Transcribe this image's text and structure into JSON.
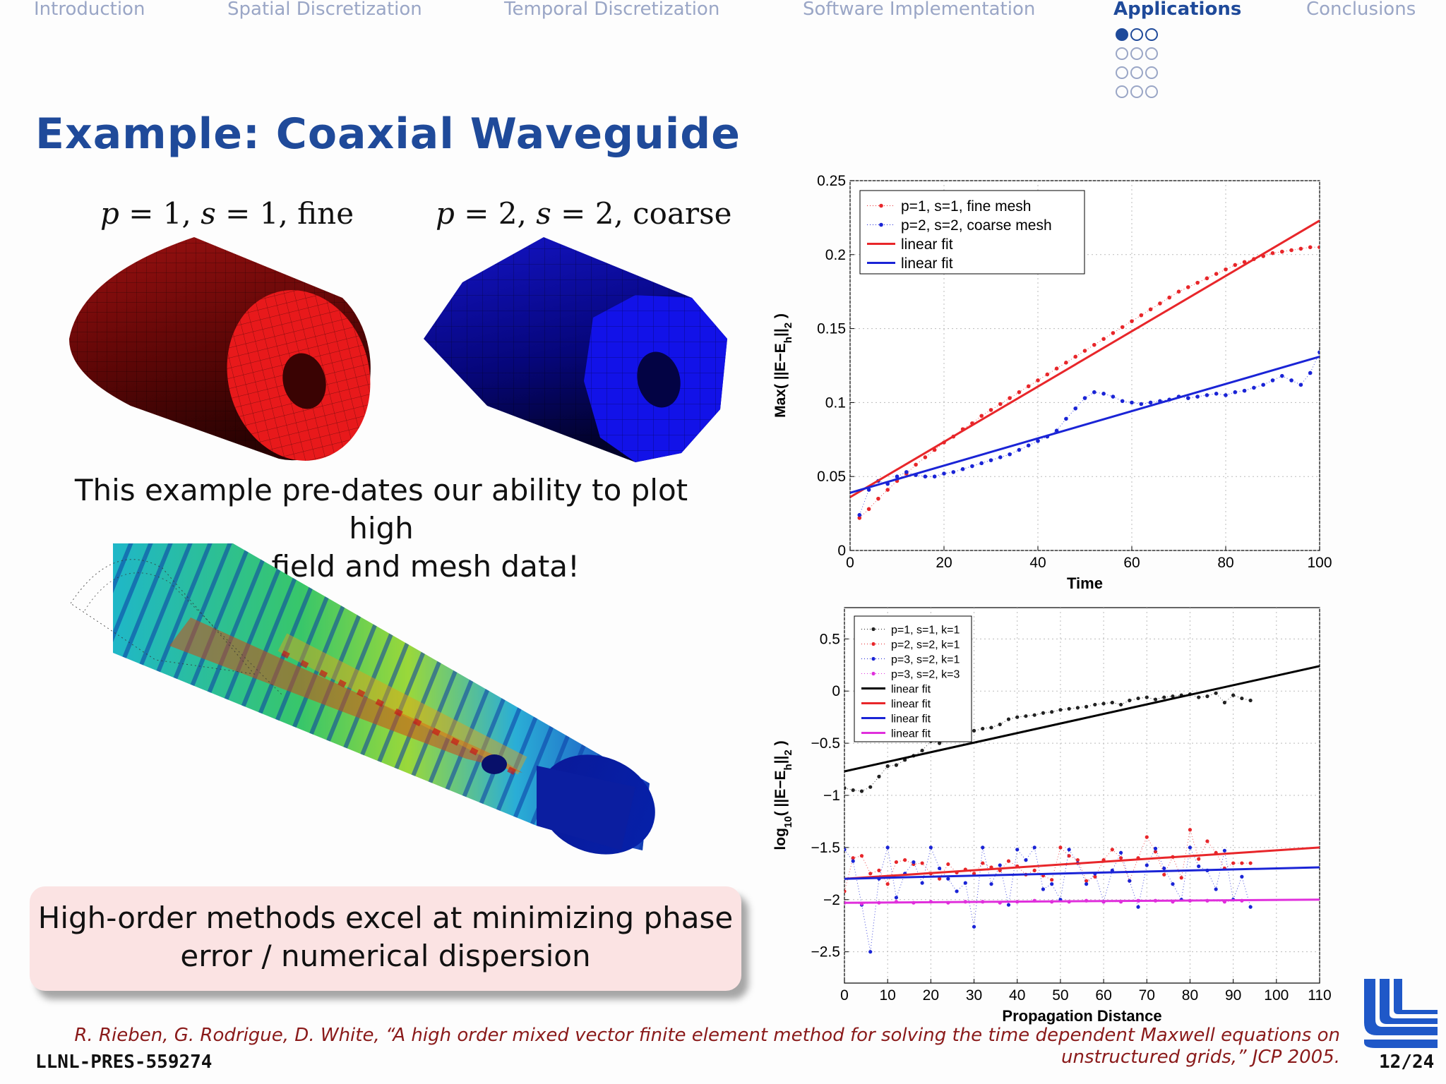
{
  "nav": {
    "items": [
      "Introduction",
      "Spatial Discretization",
      "Temporal Discretization",
      "Software Implementation",
      "Applications",
      "Conclusions"
    ],
    "active_index": 4
  },
  "title": "Example:  Coaxial Waveguide",
  "captions": {
    "left": {
      "p": "1",
      "s": "1",
      "mesh": "fine"
    },
    "right": {
      "p": "2",
      "s": "2",
      "mesh": "coarse"
    }
  },
  "note": [
    "This example pre-dates our ability to plot high",
    "order field and mesh data!"
  ],
  "callout": [
    "High-order methods excel at minimizing phase",
    "error / numerical dispersion"
  ],
  "citation": [
    "R. Rieben, G. Rodrigue, D. White, “A high order mixed vector finite element method for solving the time dependent Maxwell equations on",
    "unstructured grids,” JCP 2005."
  ],
  "footer_id": "LLNL-PRES-559274",
  "page": "12/24",
  "colors": {
    "brand": "#1f4a9a",
    "nav_inactive": "#9aa6c6",
    "callout_bg": "#fbe3e3",
    "citation": "#8a1a1a"
  },
  "chart_data": [
    {
      "type": "line",
      "xlabel": "Time",
      "ylabel": "Max( ||E−E_h||_2 )",
      "xlim": [
        0,
        100
      ],
      "ylim": [
        0,
        0.25
      ],
      "xticks": [
        "0",
        "20",
        "40",
        "60",
        "80",
        "100"
      ],
      "yticks": [
        "0",
        "0.05",
        "0.1",
        "0.15",
        "0.2",
        "0.25"
      ],
      "grid": true,
      "legend_position": "top-left",
      "series": [
        {
          "name": "p=1, s=1, fine mesh",
          "style": "dotted-markers",
          "color": "#e8262a",
          "x": [
            2,
            4,
            6,
            8,
            10,
            12,
            14,
            16,
            18,
            20,
            22,
            24,
            26,
            28,
            30,
            32,
            34,
            36,
            38,
            40,
            42,
            44,
            46,
            48,
            50,
            52,
            54,
            56,
            58,
            60,
            62,
            64,
            66,
            68,
            70,
            72,
            74,
            76,
            78,
            80,
            82,
            84,
            86,
            88,
            90,
            92,
            94,
            96,
            98,
            100
          ],
          "y": [
            0.022,
            0.028,
            0.035,
            0.041,
            0.047,
            0.052,
            0.058,
            0.063,
            0.068,
            0.073,
            0.077,
            0.082,
            0.086,
            0.091,
            0.095,
            0.099,
            0.103,
            0.107,
            0.111,
            0.115,
            0.119,
            0.123,
            0.127,
            0.131,
            0.135,
            0.139,
            0.143,
            0.147,
            0.151,
            0.155,
            0.159,
            0.163,
            0.167,
            0.171,
            0.175,
            0.178,
            0.181,
            0.184,
            0.187,
            0.19,
            0.193,
            0.195,
            0.197,
            0.199,
            0.201,
            0.202,
            0.203,
            0.204,
            0.205,
            0.205
          ]
        },
        {
          "name": "p=2, s=2, coarse mesh",
          "style": "dotted-markers",
          "color": "#1a24d6",
          "x": [
            2,
            4,
            6,
            8,
            10,
            12,
            14,
            16,
            18,
            20,
            22,
            24,
            26,
            28,
            30,
            32,
            34,
            36,
            38,
            40,
            42,
            44,
            46,
            48,
            50,
            52,
            54,
            56,
            58,
            60,
            62,
            64,
            66,
            68,
            70,
            72,
            74,
            76,
            78,
            80,
            82,
            84,
            86,
            88,
            90,
            92,
            94,
            96,
            98,
            100
          ],
          "y": [
            0.024,
            0.041,
            0.047,
            0.045,
            0.05,
            0.053,
            0.051,
            0.05,
            0.05,
            0.052,
            0.053,
            0.055,
            0.057,
            0.059,
            0.061,
            0.063,
            0.065,
            0.068,
            0.071,
            0.074,
            0.077,
            0.081,
            0.089,
            0.096,
            0.103,
            0.107,
            0.106,
            0.104,
            0.101,
            0.1,
            0.099,
            0.1,
            0.101,
            0.102,
            0.104,
            0.103,
            0.104,
            0.105,
            0.106,
            0.105,
            0.107,
            0.108,
            0.11,
            0.112,
            0.115,
            0.118,
            0.115,
            0.112,
            0.12,
            0.134
          ]
        },
        {
          "name": "linear fit",
          "style": "solid",
          "color": "#e8262a",
          "x": [
            0,
            100
          ],
          "y": [
            0.036,
            0.223
          ]
        },
        {
          "name": "linear fit",
          "style": "solid",
          "color": "#1a24d6",
          "x": [
            0,
            100
          ],
          "y": [
            0.039,
            0.131
          ]
        }
      ]
    },
    {
      "type": "line",
      "xlabel": "Propagation Distance",
      "ylabel": "log10( ||E−E_h||_2 )",
      "xlim": [
        0,
        110
      ],
      "ylim": [
        -2.8,
        0.8
      ],
      "xticks": [
        "0",
        "10",
        "20",
        "30",
        "40",
        "50",
        "60",
        "70",
        "80",
        "90",
        "100",
        "110"
      ],
      "yticks": [
        "−2.5",
        "−2",
        "−1.5",
        "−1",
        "−0.5",
        "0",
        "0.5"
      ],
      "grid": true,
      "legend_position": "top-left",
      "series": [
        {
          "name": "p=1, s=1, k=1",
          "style": "dotted-markers",
          "color": "#222222",
          "x": [
            0,
            2,
            4,
            6,
            8,
            10,
            12,
            14,
            16,
            18,
            20,
            22,
            24,
            26,
            28,
            30,
            32,
            34,
            36,
            38,
            40,
            42,
            44,
            46,
            48,
            50,
            52,
            54,
            56,
            58,
            60,
            62,
            64,
            66,
            68,
            70,
            72,
            74,
            76,
            78,
            80,
            82,
            84,
            86,
            88,
            90,
            92,
            94
          ],
          "y": [
            -0.93,
            -0.95,
            -0.96,
            -0.92,
            -0.82,
            -0.72,
            -0.71,
            -0.66,
            -0.62,
            -0.57,
            -0.48,
            -0.5,
            -0.47,
            -0.43,
            -0.42,
            -0.38,
            -0.36,
            -0.35,
            -0.32,
            -0.27,
            -0.25,
            -0.24,
            -0.23,
            -0.21,
            -0.2,
            -0.18,
            -0.17,
            -0.16,
            -0.15,
            -0.13,
            -0.12,
            -0.11,
            -0.13,
            -0.09,
            -0.07,
            -0.06,
            -0.08,
            -0.06,
            -0.05,
            -0.04,
            -0.03,
            -0.06,
            -0.05,
            -0.02,
            -0.11,
            -0.04,
            -0.07,
            -0.09
          ]
        },
        {
          "name": "p=2, s=2, k=1",
          "style": "dotted-markers",
          "color": "#e8262a",
          "x": [
            0,
            2,
            4,
            6,
            8,
            10,
            12,
            14,
            16,
            18,
            20,
            22,
            24,
            26,
            28,
            30,
            32,
            34,
            36,
            38,
            40,
            42,
            44,
            46,
            48,
            50,
            52,
            54,
            56,
            58,
            60,
            62,
            64,
            66,
            68,
            70,
            72,
            74,
            76,
            78,
            80,
            82,
            84,
            86,
            88,
            90,
            92,
            94
          ],
          "y": [
            -1.92,
            -1.6,
            -1.58,
            -1.75,
            -1.72,
            -1.85,
            -1.64,
            -1.62,
            -1.66,
            -1.65,
            -1.75,
            -1.8,
            -1.66,
            -1.74,
            -1.71,
            -1.75,
            -1.65,
            -1.69,
            -1.72,
            -1.63,
            -1.68,
            -1.76,
            -1.72,
            -1.77,
            -1.81,
            -1.5,
            -1.58,
            -1.62,
            -1.82,
            -1.78,
            -1.62,
            -1.52,
            -1.6,
            -1.82,
            -1.6,
            -1.4,
            -1.54,
            -1.76,
            -1.59,
            -1.79,
            -1.33,
            -1.61,
            -1.44,
            -1.55,
            -1.7,
            -1.65,
            -1.65,
            -1.65
          ]
        },
        {
          "name": "p=3, s=2, k=1",
          "style": "dotted-markers",
          "color": "#1a24d6",
          "x": [
            0,
            2,
            4,
            6,
            8,
            10,
            12,
            14,
            16,
            18,
            20,
            22,
            24,
            26,
            28,
            30,
            32,
            34,
            36,
            38,
            40,
            42,
            44,
            46,
            48,
            50,
            52,
            54,
            56,
            58,
            60,
            62,
            64,
            66,
            68,
            70,
            72,
            74,
            76,
            78,
            80,
            82,
            84,
            86,
            88,
            90,
            92,
            94
          ],
          "y": [
            -1.52,
            -1.63,
            -2.05,
            -2.5,
            -1.8,
            -1.5,
            -1.98,
            -1.75,
            -1.64,
            -1.84,
            -1.5,
            -1.7,
            -1.8,
            -1.92,
            -1.84,
            -2.26,
            -1.5,
            -1.85,
            -1.67,
            -2.05,
            -1.52,
            -1.62,
            -1.5,
            -1.9,
            -1.85,
            -2.0,
            -1.52,
            -1.65,
            -1.85,
            -1.75,
            -2.02,
            -1.72,
            -1.55,
            -1.82,
            -2.07,
            -1.67,
            -1.51,
            -1.7,
            -1.85,
            -2.0,
            -1.5,
            -1.68,
            -1.72,
            -1.9,
            -1.53,
            -2.0,
            -1.78,
            -2.07
          ]
        },
        {
          "name": "p=3, s=2, k=3",
          "style": "dotted-markers",
          "color": "#e02fdc",
          "x": [
            0,
            4,
            8,
            12,
            16,
            20,
            24,
            28,
            32,
            36,
            40,
            44,
            48,
            52,
            56,
            60,
            64,
            68,
            72,
            76,
            80,
            84,
            88,
            92
          ],
          "y": [
            -2.03,
            -2.04,
            -2.03,
            -2.02,
            -2.03,
            -2.02,
            -2.03,
            -2.02,
            -2.02,
            -2.03,
            -2.02,
            -2.01,
            -2.02,
            -2.02,
            -2.01,
            -2.02,
            -2.02,
            -2.01,
            -2.01,
            -2.02,
            -2.01,
            -2.01,
            -2.02,
            -2.01
          ]
        },
        {
          "name": "linear fit",
          "style": "solid",
          "color": "#000000",
          "x": [
            0,
            110
          ],
          "y": [
            -0.77,
            0.24
          ]
        },
        {
          "name": "linear fit",
          "style": "solid",
          "color": "#e8262a",
          "x": [
            0,
            110
          ],
          "y": [
            -1.8,
            -1.5
          ]
        },
        {
          "name": "linear fit",
          "style": "solid",
          "color": "#1a24d6",
          "x": [
            0,
            110
          ],
          "y": [
            -1.8,
            -1.69
          ]
        },
        {
          "name": "linear fit",
          "style": "solid",
          "color": "#e02fdc",
          "x": [
            0,
            110
          ],
          "y": [
            -2.03,
            -2.0
          ]
        }
      ]
    }
  ]
}
